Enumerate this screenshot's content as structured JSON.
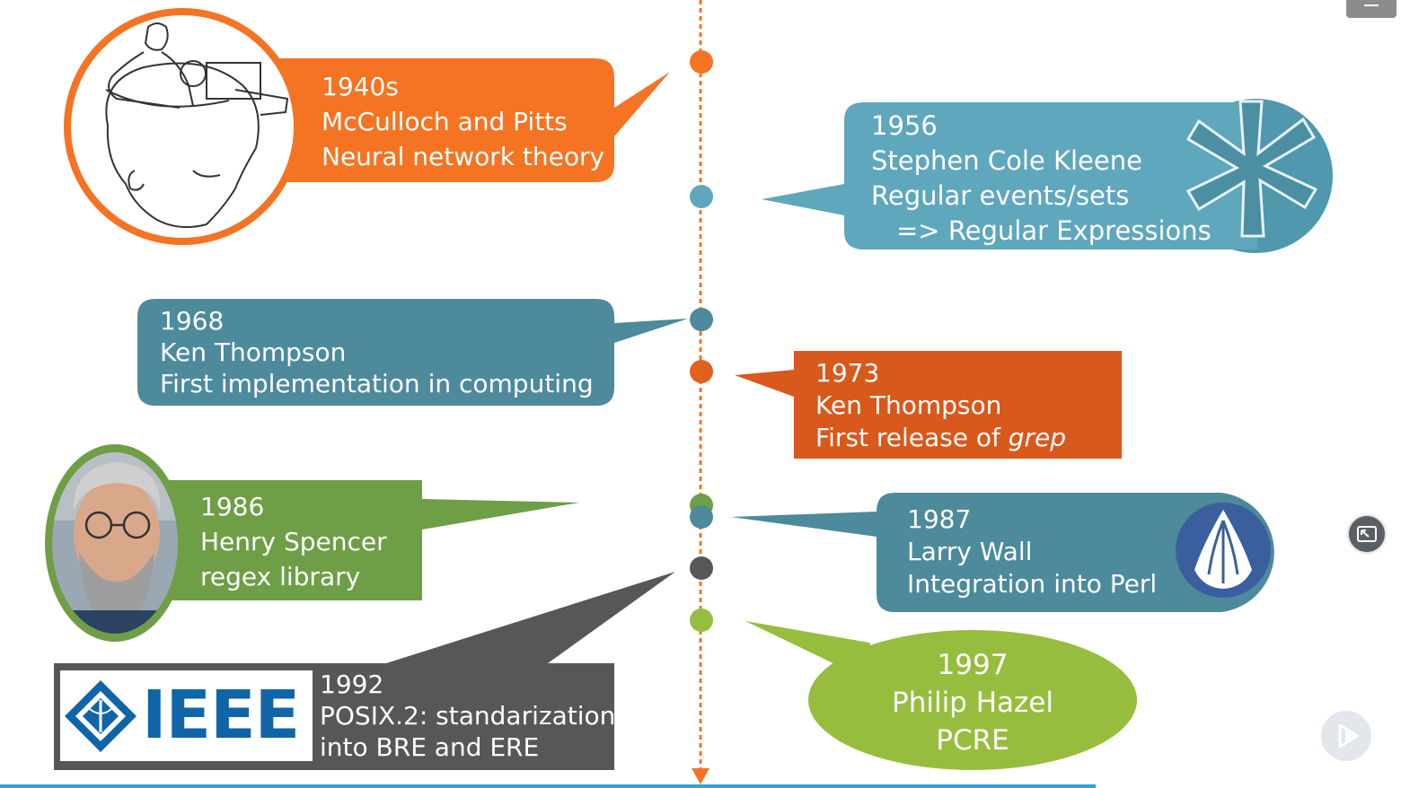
{
  "timeline": {
    "e1940": {
      "year": "1940s",
      "line1": "McCulloch and Pitts",
      "line2": "Neural network theory"
    },
    "e1956": {
      "year": "1956",
      "line1": "Stephen Cole Kleene",
      "line2": "Regular events/sets",
      "line3": "=> Regular Expressions"
    },
    "e1968": {
      "year": "1968",
      "line1": "Ken Thompson",
      "line2": "First implementation in computing"
    },
    "e1973": {
      "year": "1973",
      "line1": "Ken Thompson",
      "line2_prefix": "First release of ",
      "line2_em": "grep"
    },
    "e1986": {
      "year": "1986",
      "line1": "Henry Spencer",
      "line2": "regex library"
    },
    "e1987": {
      "year": "1987",
      "line1": "Larry Wall",
      "line2": "Integration into Perl"
    },
    "e1992": {
      "year": "1992",
      "line1": "POSIX.2: standarization",
      "line2": "into BRE and ERE",
      "logo_text": "IEEE"
    },
    "e1997": {
      "year": "1997",
      "line1": "Philip Hazel",
      "line2": "PCRE"
    }
  },
  "colors": {
    "orange": "#f47423",
    "dark_orange": "#d9581c",
    "kleene_blue": "#5fa7bd",
    "teal": "#4c8a9c",
    "green": "#6e9e45",
    "lime": "#97bd3e",
    "dark_gray": "#555759",
    "timeline_line": "#f47423",
    "ieee_blue": "#1065a8",
    "progress": "#2aa7d8"
  },
  "icons": [
    "asterisk-icon",
    "onion-perl-icon",
    "ieee-diamond-icon",
    "menu-icon",
    "fullscreen-exit-icon",
    "play-icon"
  ]
}
